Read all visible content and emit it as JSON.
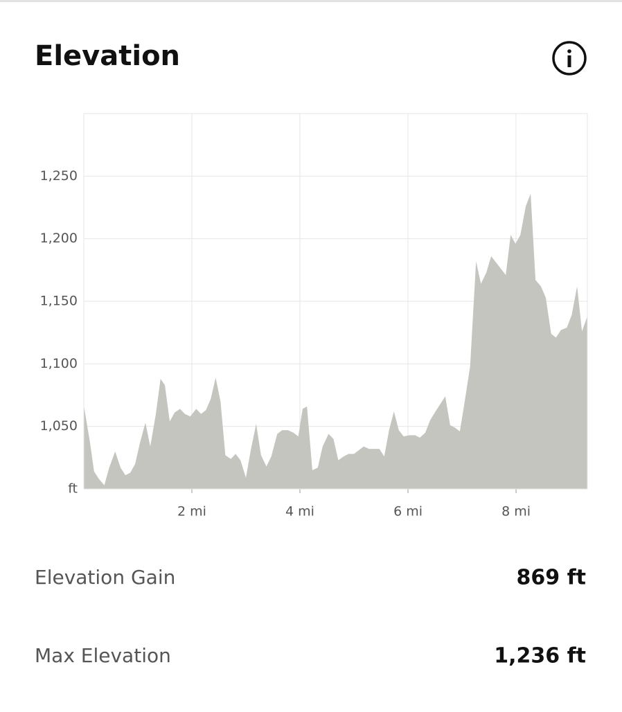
{
  "header": {
    "title": "Elevation"
  },
  "chart_data": {
    "type": "area",
    "color": "#c4c5bf",
    "grid": true,
    "xlim": [
      0,
      9.32
    ],
    "ylim": [
      1000,
      1300
    ],
    "xticks": [
      {
        "value": 2,
        "label": "2 mi"
      },
      {
        "value": 4,
        "label": "4 mi"
      },
      {
        "value": 6,
        "label": "6 mi"
      },
      {
        "value": 8,
        "label": "8 mi"
      }
    ],
    "yticks": [
      {
        "value": 1000,
        "label": "ft"
      },
      {
        "value": 1050,
        "label": "1,050"
      },
      {
        "value": 1100,
        "label": "1,100"
      },
      {
        "value": 1150,
        "label": "1,150"
      },
      {
        "value": 1200,
        "label": "1,200"
      },
      {
        "value": 1250,
        "label": "1,250"
      }
    ],
    "x": [
      0,
      0.115,
      0.19,
      0.28,
      0.38,
      0.47,
      0.58,
      0.68,
      0.77,
      0.86,
      0.95,
      1.04,
      1.14,
      1.23,
      1.33,
      1.42,
      1.5,
      1.59,
      1.68,
      1.78,
      1.87,
      1.97,
      2.08,
      2.17,
      2.26,
      2.35,
      2.44,
      2.53,
      2.62,
      2.72,
      2.81,
      2.9,
      3.0,
      3.09,
      3.19,
      3.28,
      3.38,
      3.47,
      3.58,
      3.67,
      3.78,
      3.88,
      3.97,
      4.05,
      4.13,
      4.23,
      4.33,
      4.42,
      4.53,
      4.62,
      4.71,
      4.81,
      4.9,
      5.0,
      5.09,
      5.18,
      5.28,
      5.37,
      5.47,
      5.56,
      5.65,
      5.74,
      5.83,
      5.92,
      6.03,
      6.13,
      6.22,
      6.32,
      6.41,
      6.51,
      6.6,
      6.69,
      6.78,
      6.87,
      6.96,
      7.05,
      7.15,
      7.26,
      7.35,
      7.45,
      7.54,
      7.63,
      7.72,
      7.81,
      7.9,
      7.99,
      8.08,
      8.18,
      8.27,
      8.36,
      8.46,
      8.55,
      8.65,
      8.74,
      8.83,
      8.94,
      9.03,
      9.13,
      9.22,
      9.32
    ],
    "values": [
      1067,
      1037,
      1014,
      1008,
      1003,
      1017,
      1030,
      1017,
      1011,
      1013,
      1020,
      1037,
      1053,
      1034,
      1059,
      1088,
      1083,
      1054,
      1061,
      1064,
      1060,
      1058,
      1064,
      1060,
      1063,
      1072,
      1089,
      1070,
      1027,
      1024,
      1028,
      1023,
      1009,
      1031,
      1052,
      1027,
      1018,
      1026,
      1044,
      1047,
      1047,
      1045,
      1042,
      1064,
      1066,
      1015,
      1017,
      1034,
      1044,
      1040,
      1023,
      1026,
      1028,
      1028,
      1031,
      1034,
      1032,
      1032,
      1032,
      1026,
      1047,
      1062,
      1047,
      1042,
      1043,
      1043,
      1041,
      1045,
      1055,
      1062,
      1068,
      1074,
      1051,
      1049,
      1046,
      1070,
      1098,
      1182,
      1164,
      1173,
      1186,
      1181,
      1176,
      1171,
      1203,
      1196,
      1203,
      1226,
      1236,
      1167,
      1162,
      1153,
      1124,
      1121,
      1127,
      1129,
      1139,
      1162,
      1126,
      1138
    ]
  },
  "stats": [
    {
      "label": "Elevation Gain",
      "value": "869 ft"
    },
    {
      "label": "Max Elevation",
      "value": "1,236 ft"
    }
  ]
}
